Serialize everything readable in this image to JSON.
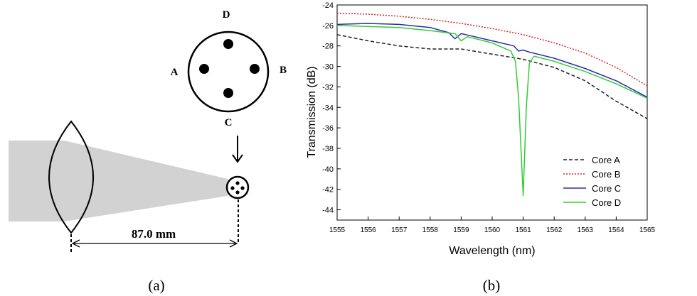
{
  "panel_a": {
    "caption": "(a)",
    "core_labels": {
      "top": "D",
      "left": "A",
      "right": "B",
      "bottom": "C"
    },
    "distance_label": "87.0 mm"
  },
  "panel_b": {
    "caption": "(b)"
  },
  "chart_data": {
    "type": "line",
    "title": "",
    "xlabel": "Wavelength (nm)",
    "ylabel": "Transmission (dB)",
    "xlim": [
      1555,
      1565
    ],
    "ylim": [
      -45,
      -24
    ],
    "x_ticks": [
      1555,
      1556,
      1557,
      1558,
      1559,
      1560,
      1561,
      1562,
      1563,
      1564,
      1565
    ],
    "y_ticks": [
      -24,
      -26,
      -28,
      -30,
      -32,
      -34,
      -36,
      -38,
      -40,
      -42,
      -44
    ],
    "grid": false,
    "legend_position": "bottom-right",
    "series": [
      {
        "name": "Core A",
        "color": "#222222",
        "style": "dashed",
        "x": [
          1555,
          1556,
          1557,
          1558,
          1559,
          1560,
          1561,
          1562,
          1563,
          1564,
          1565
        ],
        "y": [
          -26.9,
          -27.5,
          -28.0,
          -28.3,
          -28.3,
          -28.8,
          -29.3,
          -30.1,
          -31.4,
          -33.4,
          -35.1
        ]
      },
      {
        "name": "Core B",
        "color": "#d62728",
        "style": "dotted",
        "x": [
          1555,
          1556,
          1557,
          1558,
          1559,
          1560,
          1561,
          1562,
          1563,
          1564,
          1565
        ],
        "y": [
          -24.8,
          -24.9,
          -25.1,
          -25.4,
          -25.8,
          -26.3,
          -26.9,
          -27.7,
          -28.7,
          -30.1,
          -31.9
        ]
      },
      {
        "name": "Core C",
        "color": "#2b2bb0",
        "style": "solid",
        "x": [
          1555,
          1556,
          1557,
          1558,
          1558.6,
          1558.8,
          1559.0,
          1559.3,
          1560,
          1560.7,
          1560.85,
          1561.0,
          1561.2,
          1562,
          1563,
          1564,
          1565
        ],
        "y": [
          -25.9,
          -25.8,
          -25.9,
          -26.2,
          -26.7,
          -27.3,
          -26.8,
          -27.0,
          -27.5,
          -28.0,
          -28.5,
          -28.4,
          -28.6,
          -29.2,
          -30.2,
          -31.4,
          -33.0
        ]
      },
      {
        "name": "Core D",
        "color": "#33cc33",
        "style": "solid",
        "x": [
          1555,
          1556,
          1557,
          1558,
          1558.8,
          1559.0,
          1559.2,
          1560,
          1560.6,
          1560.75,
          1560.85,
          1561.0,
          1561.1,
          1561.2,
          1561.35,
          1562,
          1563,
          1564,
          1565
        ],
        "y": [
          -26.0,
          -26.1,
          -26.2,
          -26.5,
          -26.8,
          -27.5,
          -27.1,
          -27.7,
          -28.5,
          -29.5,
          -33.0,
          -42.6,
          -34.0,
          -29.7,
          -29.0,
          -29.5,
          -30.5,
          -31.7,
          -33.1
        ]
      }
    ]
  }
}
